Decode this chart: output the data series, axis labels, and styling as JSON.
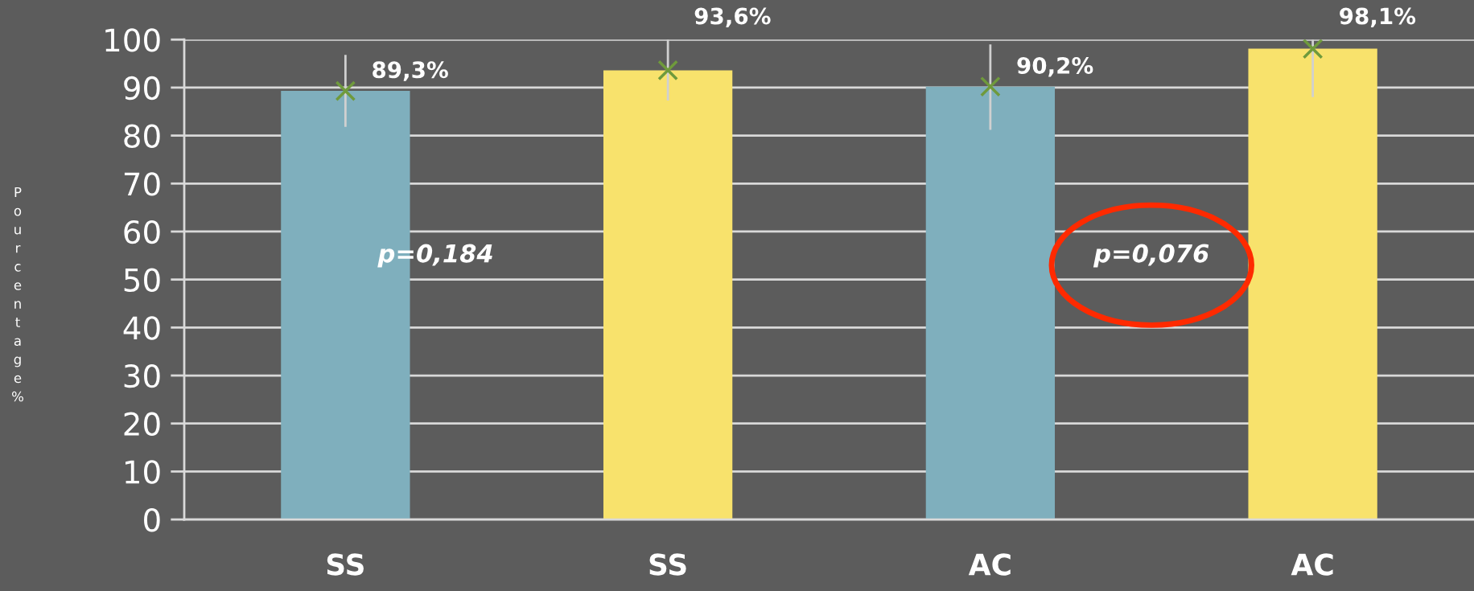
{
  "chart_data": {
    "type": "bar",
    "categories": [
      "SS",
      "SS",
      "AC",
      "AC"
    ],
    "series": [
      {
        "values": [
          89.3,
          93.6,
          90.2,
          98.1
        ],
        "colors": [
          "#7fafbd",
          "#f8e26c",
          "#7fafbd",
          "#f8e26c"
        ],
        "errors": [
          [
            81.8,
            96.8
          ],
          [
            87.3,
            100
          ],
          [
            81.2,
            99.0
          ],
          [
            88.0,
            100
          ]
        ],
        "value_labels": [
          "89,3%",
          "93,6%",
          "90,2%",
          "98,1%"
        ]
      },
      {
        "type": "scatter",
        "values": [
          89.3,
          93.6,
          90.2,
          98.1
        ],
        "color": "#6f9a3c",
        "marker": "cross"
      }
    ],
    "ylabel": "Pourcentage%",
    "ylim": [
      0,
      100
    ],
    "yticks": [
      0,
      10,
      20,
      30,
      40,
      50,
      60,
      70,
      80,
      90,
      100
    ],
    "grid": "y",
    "annotations": [
      "p=0,184",
      "p=0,076"
    ]
  }
}
